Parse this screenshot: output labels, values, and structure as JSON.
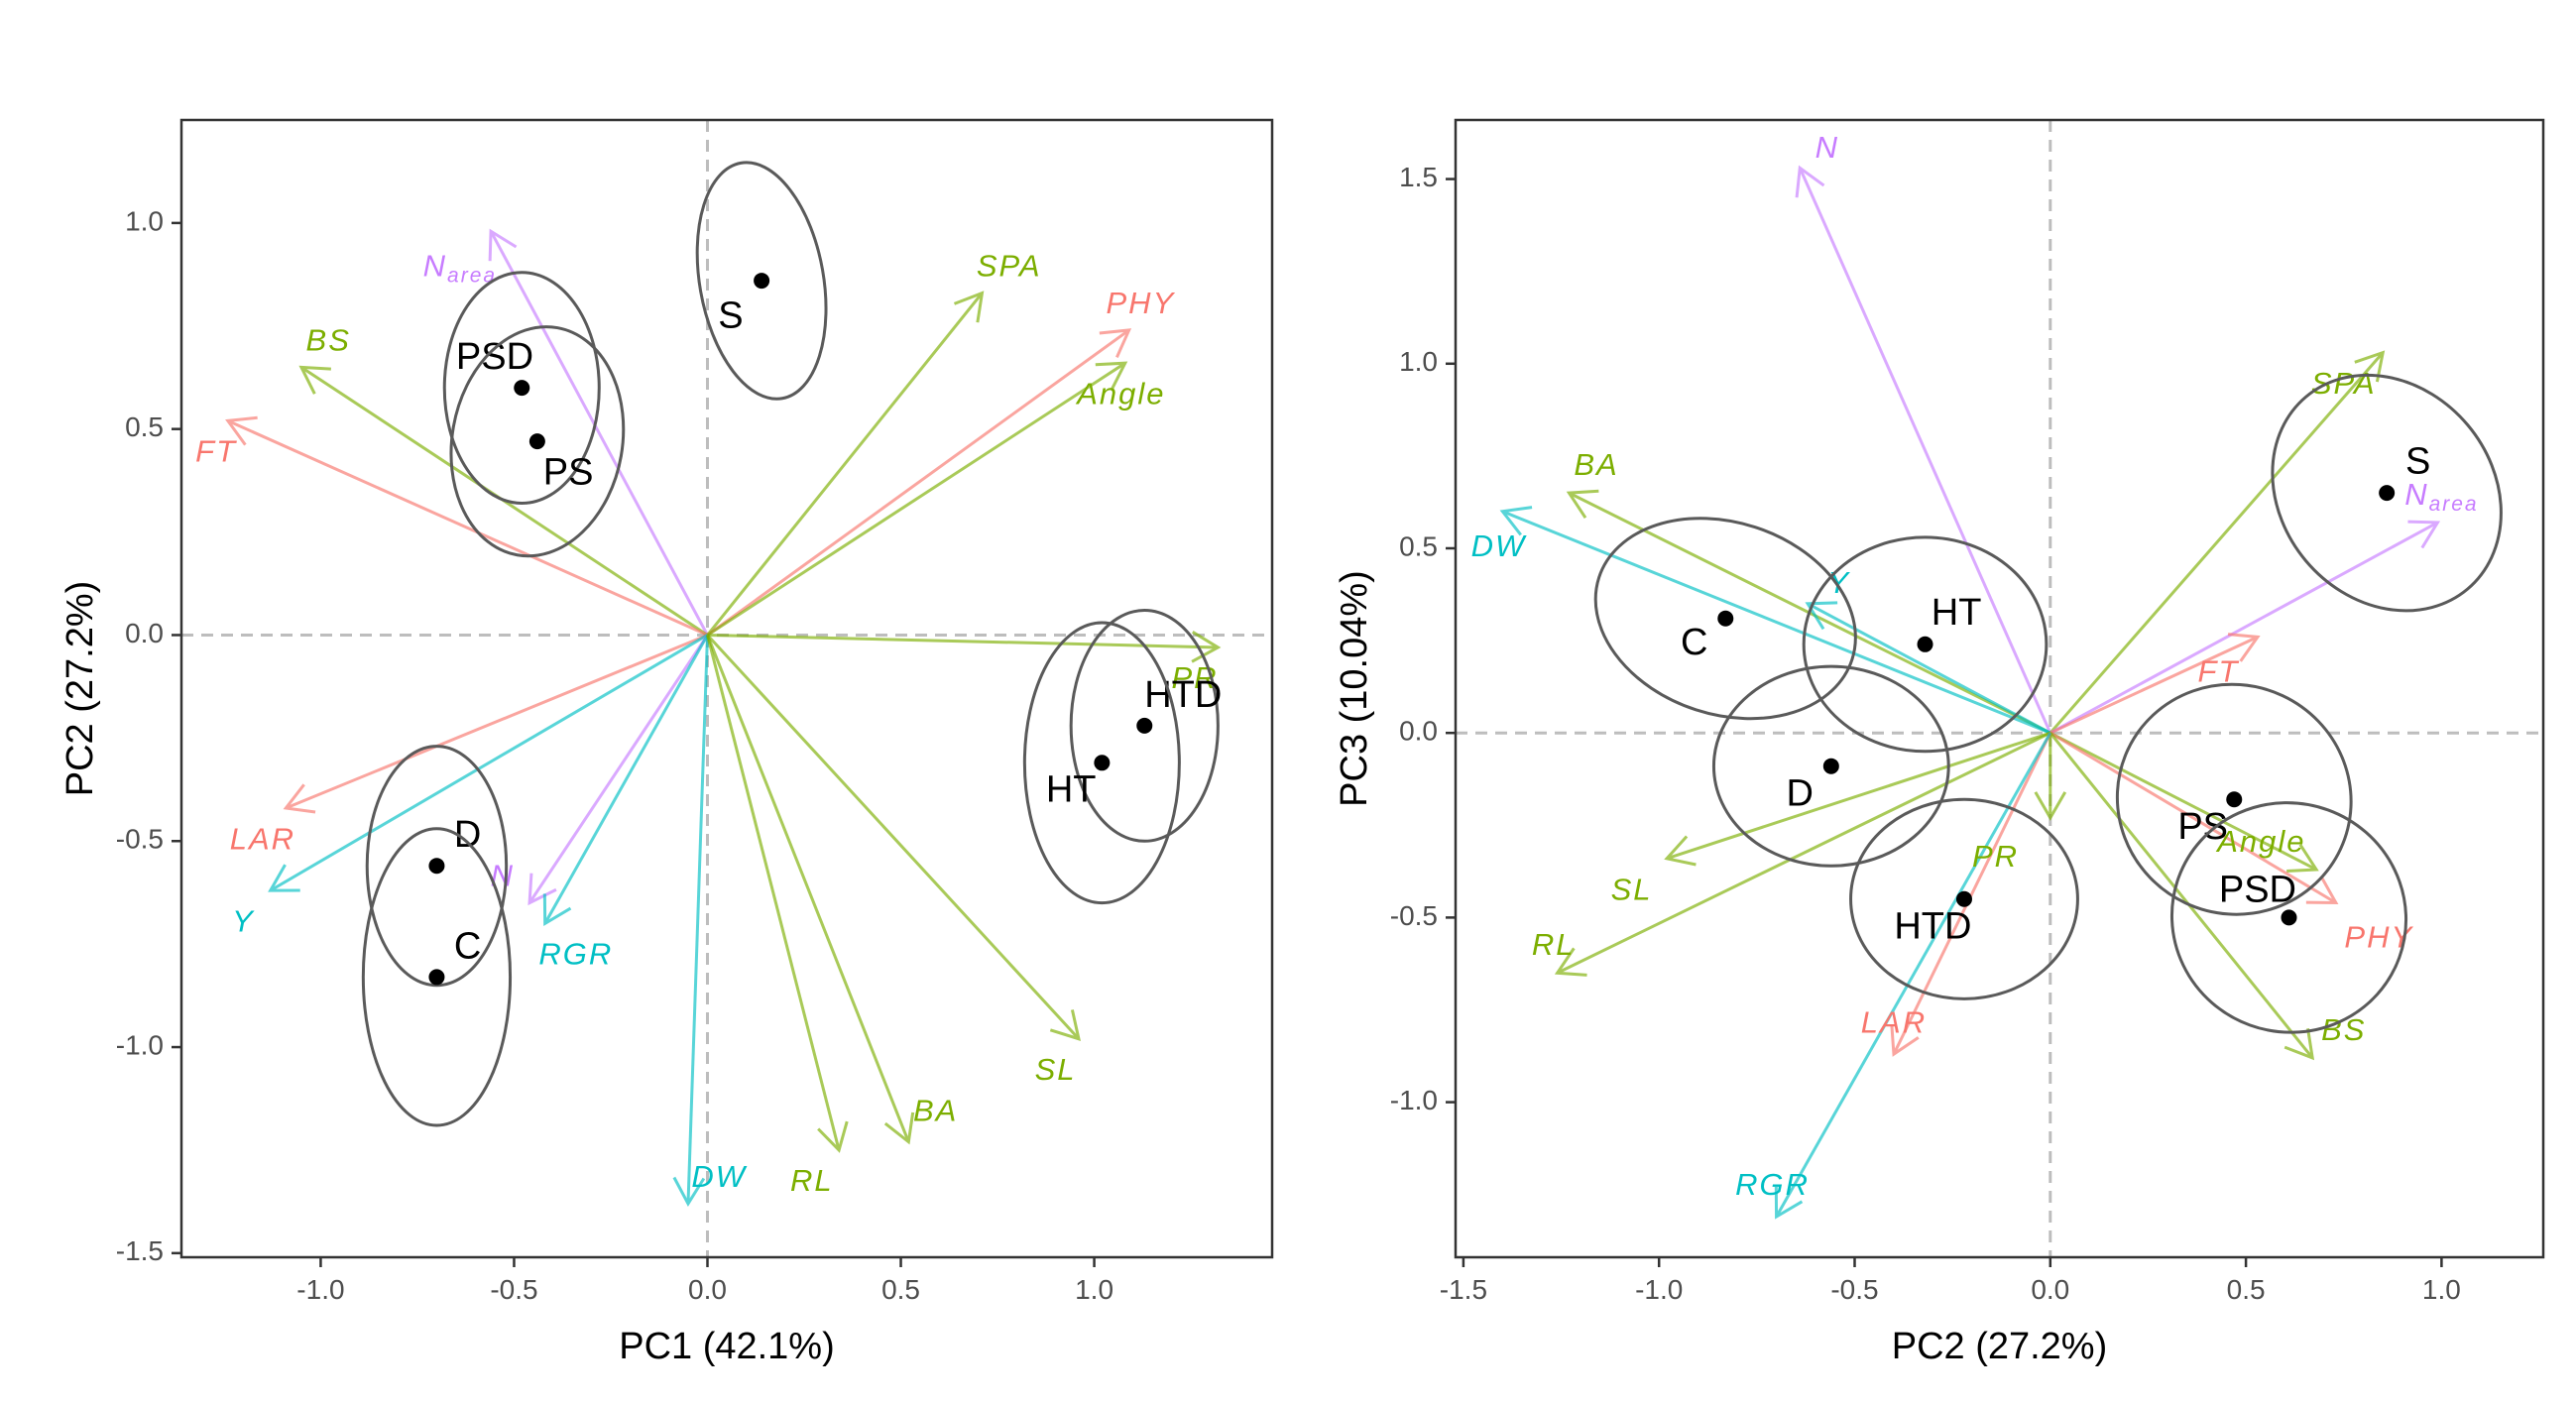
{
  "colors": {
    "morph": "#7cae00",
    "phys": "#f8766d",
    "yield": "#00bfc4",
    "nitrogen": "#c77cff",
    "ellipse": "#5a5a5a",
    "grid_zero": "#bdbdbd"
  },
  "chart_data": [
    {
      "type": "scatter",
      "subtype": "pca-biplot",
      "xlabel": "PC1 (42.1%)",
      "ylabel": "PC2 (27.2%)",
      "xlim": [
        -1.36,
        1.46
      ],
      "ylim": [
        -1.51,
        1.25
      ],
      "xticks": [
        -1.0,
        -0.5,
        0.0,
        0.5,
        1.0
      ],
      "xtick_labels": [
        "-1.0",
        "-0.5",
        "0.0",
        "0.5",
        "1.0"
      ],
      "yticks": [
        -1.5,
        -1.0,
        -0.5,
        0.0,
        0.5,
        1.0
      ],
      "ytick_labels": [
        "-1.5",
        "-1.0",
        "-0.5",
        "0.0",
        "0.5",
        "1.0"
      ],
      "grid": false,
      "groups": [
        {
          "label": "S",
          "x": 0.14,
          "y": 0.86,
          "rx": 0.16,
          "ry": 0.29,
          "angle": 10,
          "label_dx": -0.08,
          "label_dy": -0.09
        },
        {
          "label": "PSD",
          "x": -0.48,
          "y": 0.6,
          "rx": 0.2,
          "ry": 0.28,
          "angle": 0,
          "label_dx": -0.07,
          "label_dy": 0.07
        },
        {
          "label": "PS",
          "x": -0.44,
          "y": 0.47,
          "rx": 0.22,
          "ry": 0.28,
          "angle": -10,
          "label_dx": 0.08,
          "label_dy": -0.08
        },
        {
          "label": "HTD",
          "x": 1.13,
          "y": -0.22,
          "rx": 0.19,
          "ry": 0.28,
          "angle": 0,
          "label_dx": 0.1,
          "label_dy": 0.07
        },
        {
          "label": "HT",
          "x": 1.02,
          "y": -0.31,
          "rx": 0.2,
          "ry": 0.34,
          "angle": 0,
          "label_dx": -0.08,
          "label_dy": -0.07
        },
        {
          "label": "D",
          "x": -0.7,
          "y": -0.56,
          "rx": 0.18,
          "ry": 0.29,
          "angle": 0,
          "label_dx": 0.08,
          "label_dy": 0.07
        },
        {
          "label": "C",
          "x": -0.7,
          "y": -0.83,
          "rx": 0.19,
          "ry": 0.36,
          "angle": 0,
          "label_dx": 0.08,
          "label_dy": 0.07
        }
      ],
      "vectors": [
        {
          "name": "N",
          "sub": "area",
          "x": -0.56,
          "y": 0.98,
          "color": "nitrogen",
          "lx": -0.64,
          "ly": 0.89
        },
        {
          "name": "BS",
          "x": -1.05,
          "y": 0.65,
          "color": "morph",
          "lx": -0.98,
          "ly": 0.71
        },
        {
          "name": "FT",
          "x": -1.24,
          "y": 0.52,
          "color": "phys",
          "lx": -1.27,
          "ly": 0.44
        },
        {
          "name": "SPA",
          "x": 0.71,
          "y": 0.83,
          "color": "morph",
          "lx": 0.78,
          "ly": 0.89
        },
        {
          "name": "PHY",
          "x": 1.09,
          "y": 0.74,
          "color": "phys",
          "lx": 1.12,
          "ly": 0.8
        },
        {
          "name": "Angle",
          "x": 1.08,
          "y": 0.66,
          "color": "morph",
          "lx": 1.07,
          "ly": 0.58
        },
        {
          "name": "PR",
          "x": 1.32,
          "y": -0.03,
          "color": "morph",
          "lx": 1.26,
          "ly": -0.11
        },
        {
          "name": "LAR",
          "x": -1.09,
          "y": -0.42,
          "color": "phys",
          "lx": -1.15,
          "ly": -0.5
        },
        {
          "name": "Y",
          "x": -1.13,
          "y": -0.62,
          "color": "yield",
          "lx": -1.2,
          "ly": -0.7
        },
        {
          "name": "N",
          "x": -0.46,
          "y": -0.65,
          "color": "nitrogen",
          "lx": -0.53,
          "ly": -0.59
        },
        {
          "name": "RGR",
          "x": -0.42,
          "y": -0.7,
          "color": "yield",
          "lx": -0.34,
          "ly": -0.78
        },
        {
          "name": "DW",
          "x": -0.05,
          "y": -1.38,
          "color": "yield",
          "lx": 0.03,
          "ly": -1.32
        },
        {
          "name": "RL",
          "x": 0.34,
          "y": -1.25,
          "color": "morph",
          "lx": 0.27,
          "ly": -1.33
        },
        {
          "name": "BA",
          "x": 0.52,
          "y": -1.23,
          "color": "morph",
          "lx": 0.59,
          "ly": -1.16
        },
        {
          "name": "SL",
          "x": 0.96,
          "y": -0.98,
          "color": "morph",
          "lx": 0.9,
          "ly": -1.06
        }
      ]
    },
    {
      "type": "scatter",
      "subtype": "pca-biplot",
      "xlabel": "PC2 (27.2%)",
      "ylabel": "PC3 (10.04%)",
      "xlim": [
        -1.52,
        1.26
      ],
      "ylim": [
        -1.42,
        1.66
      ],
      "xticks": [
        -1.5,
        -1.0,
        -0.5,
        0.0,
        0.5,
        1.0
      ],
      "xtick_labels": [
        "-1.5",
        "-1.0",
        "-0.5",
        "0.0",
        "0.5",
        "1.0"
      ],
      "yticks": [
        -1.0,
        -0.5,
        0.0,
        0.5,
        1.0,
        1.5
      ],
      "ytick_labels": [
        "-1.0",
        "-0.5",
        "0.0",
        "0.5",
        "1.0",
        "1.5"
      ],
      "grid": false,
      "groups": [
        {
          "label": "S",
          "x": 0.86,
          "y": 0.65,
          "rx": 0.27,
          "ry": 0.34,
          "angle": 40,
          "label_dx": 0.08,
          "label_dy": 0.08
        },
        {
          "label": "HT",
          "x": -0.32,
          "y": 0.24,
          "rx": 0.31,
          "ry": 0.29,
          "angle": 0,
          "label_dx": 0.08,
          "label_dy": 0.08
        },
        {
          "label": "C",
          "x": -0.83,
          "y": 0.31,
          "rx": 0.34,
          "ry": 0.26,
          "angle": -18,
          "label_dx": -0.08,
          "label_dy": -0.07
        },
        {
          "label": "D",
          "x": -0.56,
          "y": -0.09,
          "rx": 0.3,
          "ry": 0.27,
          "angle": 0,
          "label_dx": -0.08,
          "label_dy": -0.08
        },
        {
          "label": "HTD",
          "x": -0.22,
          "y": -0.45,
          "rx": 0.29,
          "ry": 0.27,
          "angle": 0,
          "label_dx": -0.08,
          "label_dy": -0.08
        },
        {
          "label": "PS",
          "x": 0.47,
          "y": -0.18,
          "rx": 0.3,
          "ry": 0.31,
          "angle": -25,
          "label_dx": -0.08,
          "label_dy": -0.08
        },
        {
          "label": "PSD",
          "x": 0.61,
          "y": -0.5,
          "rx": 0.3,
          "ry": 0.31,
          "angle": -20,
          "label_dx": -0.08,
          "label_dy": 0.07
        }
      ],
      "vectors": [
        {
          "name": "N",
          "x": -0.64,
          "y": 1.53,
          "color": "nitrogen",
          "lx": -0.57,
          "ly": 1.58
        },
        {
          "name": "SPA",
          "x": 0.85,
          "y": 1.03,
          "color": "morph",
          "lx": 0.75,
          "ly": 0.94
        },
        {
          "name": "N",
          "sub": "area",
          "x": 0.99,
          "y": 0.57,
          "color": "nitrogen",
          "lx": 1.0,
          "ly": 0.64
        },
        {
          "name": "BA",
          "x": -1.23,
          "y": 0.65,
          "color": "morph",
          "lx": -1.16,
          "ly": 0.72
        },
        {
          "name": "DW",
          "x": -1.4,
          "y": 0.6,
          "color": "yield",
          "lx": -1.41,
          "ly": 0.5
        },
        {
          "name": "Y",
          "x": -0.62,
          "y": 0.35,
          "color": "yield",
          "lx": -0.54,
          "ly": 0.4
        },
        {
          "name": "FT",
          "x": 0.53,
          "y": 0.26,
          "color": "phys",
          "lx": 0.43,
          "ly": 0.16
        },
        {
          "name": "Angle",
          "x": 0.68,
          "y": -0.37,
          "color": "morph",
          "lx": 0.54,
          "ly": -0.3
        },
        {
          "name": "PHY",
          "x": 0.73,
          "y": -0.46,
          "color": "phys",
          "lx": 0.84,
          "ly": -0.56
        },
        {
          "name": "PR",
          "x": 0.0,
          "y": -0.23,
          "color": "morph",
          "lx": -0.14,
          "ly": -0.34
        },
        {
          "name": "SL",
          "x": -0.98,
          "y": -0.34,
          "color": "morph",
          "lx": -1.07,
          "ly": -0.43
        },
        {
          "name": "RL",
          "x": -1.26,
          "y": -0.65,
          "color": "morph",
          "lx": -1.27,
          "ly": -0.58
        },
        {
          "name": "BS",
          "x": 0.67,
          "y": -0.88,
          "color": "morph",
          "lx": 0.75,
          "ly": -0.81
        },
        {
          "name": "LAR",
          "x": -0.4,
          "y": -0.87,
          "color": "phys",
          "lx": -0.4,
          "ly": -0.79
        },
        {
          "name": "RGR",
          "x": -0.7,
          "y": -1.31,
          "color": "yield",
          "lx": -0.71,
          "ly": -1.23
        }
      ]
    }
  ]
}
